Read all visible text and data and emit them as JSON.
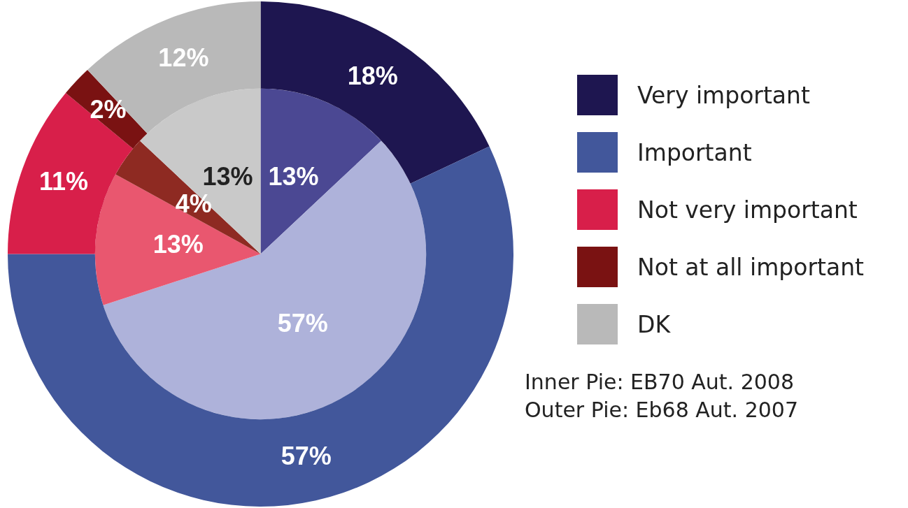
{
  "chart_data": {
    "type": "donut",
    "categories": [
      "Very important",
      "Important",
      "Not very important",
      "Not at all important",
      "DK"
    ],
    "series": [
      {
        "values": [
          18,
          57,
          11,
          2,
          12
        ],
        "value_labels": [
          "18%",
          "57%",
          "11%",
          "2%",
          "12%"
        ],
        "colors": [
          "#1e1650",
          "#42579b",
          "#d81f4a",
          "#7a1212",
          "#b9b9b9"
        ]
      },
      {
        "values": [
          13,
          57,
          13,
          4,
          13
        ],
        "value_labels": [
          "13%",
          "57%",
          "13%",
          "4%",
          "13%"
        ],
        "colors": [
          "#4b4893",
          "#aeb2da",
          "#e9576f",
          "#8e2a22",
          "#c9c9c9"
        ]
      }
    ],
    "legend": "right",
    "annotations": [
      "Inner Pie: EB70 Aut. 2008",
      "Outer Pie: Eb68 Aut. 2007"
    ]
  }
}
